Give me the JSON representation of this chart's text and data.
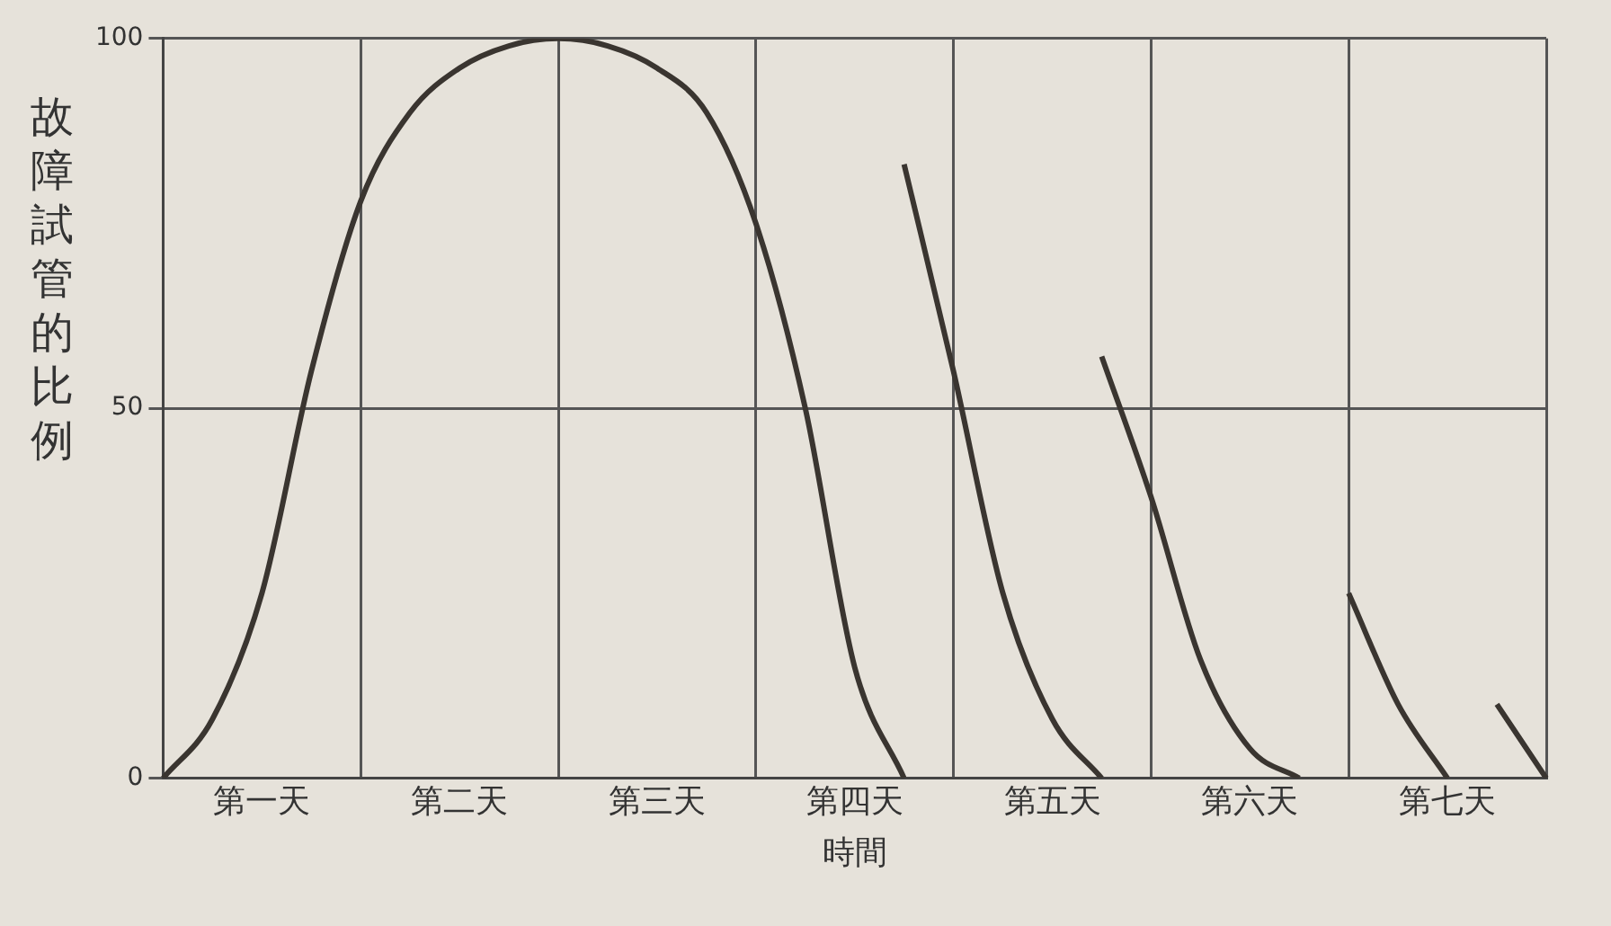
{
  "chart_data": {
    "type": "line",
    "xlabel": "時間",
    "ylabel": "故障試管的比例",
    "categories": [
      null,
      null,
      "第一天",
      null,
      null,
      null,
      "第二天",
      null,
      null,
      null,
      "第三天",
      null,
      null,
      null,
      "第四天",
      null,
      null,
      null,
      "第五天",
      null,
      null,
      null,
      "第六天",
      null,
      null,
      null,
      "第七天",
      null,
      null
    ],
    "ylim": [
      0,
      100
    ],
    "yticks": [
      0,
      50,
      100
    ],
    "grid": true,
    "legend": false,
    "marker": "none",
    "line_style": "solid",
    "series": [
      {
        "color": "#3a3530",
        "values": [
          0,
          8,
          25,
          55,
          78,
          90,
          96,
          99,
          100,
          99,
          96,
          90,
          75,
          50,
          15,
          0,
          null,
          null,
          null,
          null,
          null,
          null,
          null,
          null,
          null,
          null,
          null,
          null,
          null
        ]
      },
      {
        "color": "#3a3530",
        "values": [
          null,
          null,
          null,
          null,
          null,
          null,
          null,
          null,
          null,
          null,
          null,
          null,
          null,
          null,
          null,
          83,
          55,
          25,
          8,
          0,
          null,
          null,
          null,
          null,
          null,
          null,
          null,
          null,
          null
        ]
      },
      {
        "color": "#3a3530",
        "values": [
          null,
          null,
          null,
          null,
          null,
          null,
          null,
          null,
          null,
          null,
          null,
          null,
          null,
          null,
          null,
          null,
          null,
          null,
          null,
          57,
          38,
          16,
          4,
          0,
          null,
          null,
          null,
          null,
          null
        ]
      },
      {
        "color": "#3a3530",
        "values": [
          null,
          null,
          null,
          null,
          null,
          null,
          null,
          null,
          null,
          null,
          null,
          null,
          null,
          null,
          null,
          null,
          null,
          null,
          null,
          null,
          null,
          null,
          null,
          null,
          25,
          10,
          0,
          null,
          null
        ]
      },
      {
        "color": "#3a3530",
        "values": [
          null,
          null,
          null,
          null,
          null,
          null,
          null,
          null,
          null,
          null,
          null,
          null,
          null,
          null,
          null,
          null,
          null,
          null,
          null,
          null,
          null,
          null,
          null,
          null,
          null,
          null,
          null,
          10,
          0
        ]
      }
    ]
  }
}
